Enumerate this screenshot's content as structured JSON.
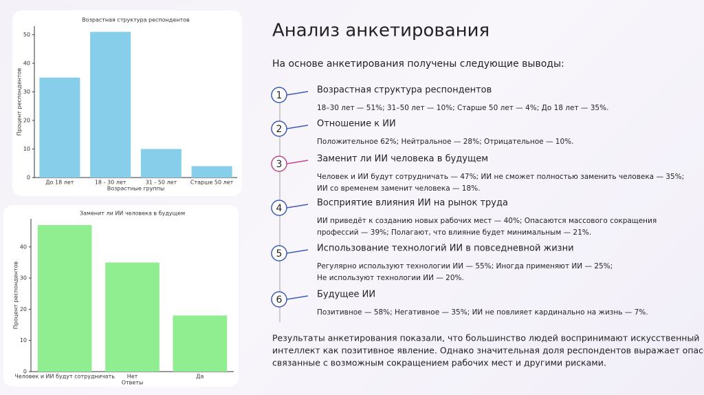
{
  "chart_data": [
    {
      "type": "bar",
      "title": "Возрастная структура респондентов",
      "x_label": "Возрастные группы",
      "y_label": "Процент респондентов",
      "categories": [
        "До 18 лет",
        "18 - 30 лет",
        "31 - 50 лет",
        "Старше 50 лет"
      ],
      "values": [
        35,
        51,
        10,
        4
      ],
      "color": "#87ceeb",
      "ylim": [
        0,
        53
      ],
      "yticks": [
        0,
        10,
        20,
        30,
        40,
        50
      ],
      "grid": false
    },
    {
      "type": "bar",
      "title": "Заменит ли ИИ человека в будущем",
      "x_label": "Ответы",
      "y_label": "Процент респондентов",
      "categories": [
        "Человек и ИИ будут сотрудничать",
        "Нет",
        "Да"
      ],
      "values": [
        47,
        35,
        18
      ],
      "color": "#90ee90",
      "ylim": [
        0,
        49
      ],
      "yticks": [
        0,
        10,
        20,
        30,
        40
      ],
      "grid": false
    }
  ],
  "slide": {
    "title": "Анализ анкетирования",
    "intro": "На основе анкетирования получены следующие выводы:",
    "items": [
      {
        "number": "1",
        "heading": "Возрастная структура респондентов",
        "lines": [
          "18–30 лет — 51%; 31–50 лет — 10%; Старше 50 лет — 4%; До 18 лет — 35%."
        ]
      },
      {
        "number": "2",
        "heading": "Отношение к ИИ",
        "lines": [
          "Положительное 62%; Нейтральное — 28%; Отрицательное — 10%."
        ]
      },
      {
        "number": "3",
        "heading": "Заменит ли ИИ человека в будущем",
        "lines": [
          "Человек и ИИ будут сотрудничать — 47%; ИИ не сможет полностью заменить человека — 35%;",
          "ИИ со временем заменит человека — 18%."
        ]
      },
      {
        "number": "4",
        "heading": "Восприятие влияния ИИ на рынок труда",
        "lines": [
          "ИИ приведёт к созданию новых рабочих мест — 40%; Опасаются массового сокращения",
          "профессий — 39%; Полагают, что влияние будет минимальным — 21%."
        ]
      },
      {
        "number": "5",
        "heading": "Использование технологий ИИ в повседневной жизни",
        "lines": [
          "Регулярно используют технологии ИИ — 55%; Иногда применяют ИИ — 25%;",
          "Не используют технологии ИИ — 20%."
        ]
      },
      {
        "number": "6",
        "heading": "Будущее ИИ",
        "lines": [
          "Позитивное — 58%; Негативное — 35%; ИИ не повлияет кардинально на жизнь — 7%."
        ]
      }
    ],
    "conclusion": [
      "Результаты анкетирования показали, что большинство людей воспринимают искусственный",
      "интеллект как позитивное явление. Однако значительная доля респондентов выражает опасения,",
      "связанные с возможным сокращением рабочих мест и другими рисками."
    ]
  }
}
